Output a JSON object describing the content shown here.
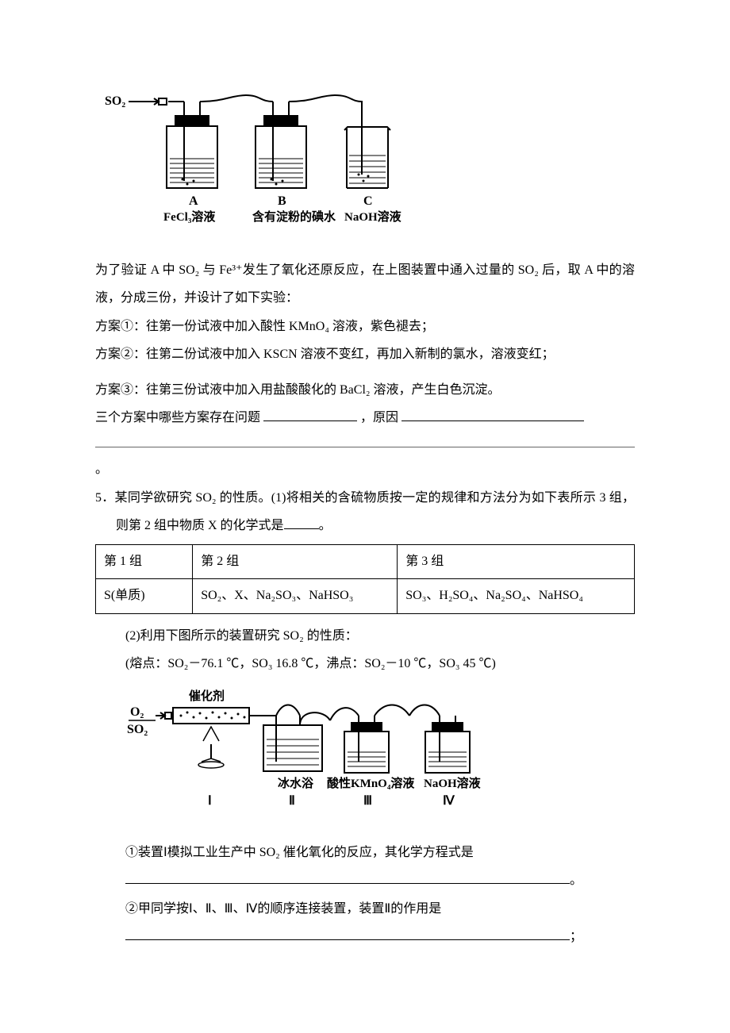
{
  "diagram1": {
    "input_label": "SO₂",
    "flasks": [
      {
        "tag": "A",
        "caption": "FeCl₃溶液"
      },
      {
        "tag": "B",
        "caption": "含有淀粉的碘水"
      },
      {
        "tag": "C",
        "caption": "NaOH溶液"
      }
    ],
    "stroke": "#000000",
    "font_family": "SimSun",
    "tag_font_size": 16,
    "caption_font_size": 15,
    "caption_font_weight": "bold"
  },
  "body_before_plans": "为了验证 A 中 SO₂ 与 Fe³⁺发生了氧化还原反应，在上图装置中通入过量的 SO₂ 后，取 A 中的溶液，分成三份，并设计了如下实验：",
  "plan1": "方案①：往第一份试液中加入酸性 KMnO₄ 溶液，紫色褪去；",
  "plan2": "方案②：往第二份试液中加入 KSCN 溶液不变红，再加入新制的氯水，溶液变红；",
  "plan3": "方案③：往第三份试液中加入用盐酸酸化的 BaCl₂ 溶液，产生白色沉淀。",
  "question_tail_a": "三个方案中哪些方案存在问题",
  "question_tail_b": "，原因",
  "blank1_width": 118,
  "blank2_width": 230,
  "trailing_period": "。",
  "q5_num": "5．",
  "q5_intro_a": "某同学欲研究 SO₂ 的性质。(1)将相关的含硫物质按一定的规律和方法分为如下表所示 3 组，则第 2 组中物质 X 的化学式是",
  "q5_blank_width": 44,
  "q5_intro_b": "。",
  "table": {
    "col_widths": [
      "18%",
      "38%",
      "44%"
    ],
    "headers": [
      "第 1 组",
      "第 2 组",
      "第 3 组"
    ],
    "row": [
      "S(单质)",
      "SO₂、X、Na₂SO₃、NaHSO₃",
      "SO₃、H₂SO₄、Na₂SO₄、NaHSO₄"
    ]
  },
  "q5_part2_intro": "(2)利用下图所示的装置研究 SO₂ 的性质：",
  "q5_part2_note": "(熔点：SO₂－76.1 ℃，SO₃ 16.8 ℃，沸点：SO₂－10 ℃，SO₃ 45 ℃)",
  "diagram2": {
    "inputs": [
      "O₂",
      "SO₂"
    ],
    "catalyst_label": "催化剂",
    "stations": [
      {
        "roman": "Ⅰ",
        "caption": ""
      },
      {
        "roman": "Ⅱ",
        "caption": "冰水浴"
      },
      {
        "roman": "Ⅲ",
        "caption": "酸性KMnO₄溶液"
      },
      {
        "roman": "Ⅳ",
        "caption": "NaOH溶液"
      }
    ],
    "stroke": "#000000",
    "caption_font_size": 15,
    "caption_font_weight": "bold",
    "roman_font_size": 16
  },
  "q5_sub1": "①装置Ⅰ模拟工业生产中 SO₂ 催化氧化的反应，其化学方程式是",
  "q5_sub1_tail": "。",
  "q5_sub2": "②甲同学按Ⅰ、Ⅱ、Ⅲ、Ⅳ的顺序连接装置，装置Ⅱ的作用是",
  "q5_sub2_tail": "；",
  "long_blank_width": 560
}
